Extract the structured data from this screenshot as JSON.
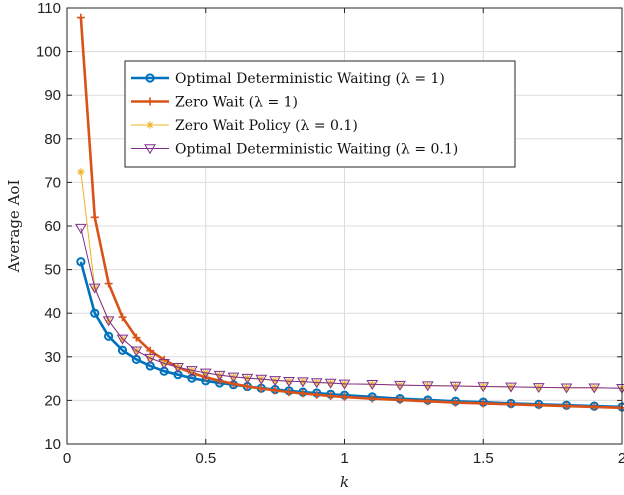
{
  "chart_data": {
    "type": "line",
    "title": "",
    "xlabel": "k",
    "ylabel": "Average AoI",
    "xlim": [
      0,
      2
    ],
    "ylim": [
      10,
      110
    ],
    "xticks": [
      "0",
      "0.5",
      "1",
      "1.5",
      "2"
    ],
    "yticks": [
      "10",
      "20",
      "30",
      "40",
      "50",
      "60",
      "70",
      "80",
      "90",
      "100",
      "110"
    ],
    "grid": true,
    "legend_position": "top-center",
    "series": [
      {
        "name": "Optimal Deterministic Waiting (λ = 1)",
        "color": "#0072BD",
        "marker": "circle",
        "x": [
          0.05,
          0.1,
          0.15,
          0.2,
          0.25,
          0.3,
          0.35,
          0.4,
          0.45,
          0.5,
          0.55,
          0.6,
          0.65,
          0.7,
          0.75,
          0.8,
          0.85,
          0.9,
          0.95,
          1.0,
          1.1,
          1.2,
          1.3,
          1.4,
          1.5,
          1.6,
          1.7,
          1.8,
          1.9,
          2.0
        ],
        "y": [
          51.8,
          40.0,
          34.7,
          31.5,
          29.4,
          27.9,
          26.7,
          25.9,
          25.1,
          24.5,
          24.0,
          23.6,
          23.2,
          22.8,
          22.5,
          22.2,
          21.9,
          21.7,
          21.4,
          21.2,
          20.8,
          20.4,
          20.1,
          19.8,
          19.6,
          19.3,
          19.1,
          18.9,
          18.7,
          18.5
        ]
      },
      {
        "name": "Zero Wait (λ = 1)",
        "color": "#D95319",
        "marker": "plus",
        "x": [
          0.05,
          0.1,
          0.15,
          0.2,
          0.25,
          0.3,
          0.35,
          0.4,
          0.45,
          0.5,
          0.55,
          0.6,
          0.65,
          0.7,
          0.75,
          0.8,
          0.85,
          0.9,
          0.95,
          1.0,
          1.1,
          1.2,
          1.3,
          1.4,
          1.5,
          1.6,
          1.7,
          1.8,
          1.9,
          2.0
        ],
        "y": [
          107.8,
          62.0,
          46.8,
          39.1,
          34.4,
          31.4,
          29.3,
          27.6,
          26.3,
          25.3,
          24.5,
          23.8,
          23.2,
          22.7,
          22.3,
          21.9,
          21.6,
          21.3,
          21.0,
          20.8,
          20.4,
          20.1,
          19.8,
          19.5,
          19.3,
          19.1,
          18.9,
          18.7,
          18.5,
          18.3
        ]
      },
      {
        "name": "Zero Wait Policy (λ = 0.1)",
        "color": "#EDB120",
        "marker": "star",
        "x": [
          0.05,
          0.1,
          0.15,
          0.2,
          0.25,
          0.3,
          0.35,
          0.4,
          0.45,
          0.5,
          0.55,
          0.6,
          0.65,
          0.7,
          0.75,
          0.8,
          0.85,
          0.9,
          0.95,
          1.0,
          1.1,
          1.2,
          1.3,
          1.4,
          1.5,
          1.6,
          1.7,
          1.8,
          1.9,
          2.0
        ],
        "y": [
          72.4,
          45.8,
          38.3,
          34.1,
          31.4,
          29.7,
          28.5,
          27.6,
          26.9,
          26.3,
          25.8,
          25.4,
          25.1,
          24.9,
          24.6,
          24.4,
          24.3,
          24.1,
          24.0,
          23.8,
          23.7,
          23.5,
          23.4,
          23.3,
          23.2,
          23.1,
          23.0,
          22.9,
          22.9,
          22.8
        ]
      },
      {
        "name": "Optimal Deterministic Waiting (λ = 0.1)",
        "color": "#7E2F8E",
        "marker": "triangle-down",
        "x": [
          0.05,
          0.1,
          0.15,
          0.2,
          0.25,
          0.3,
          0.35,
          0.4,
          0.45,
          0.5,
          0.55,
          0.6,
          0.65,
          0.7,
          0.75,
          0.8,
          0.85,
          0.9,
          0.95,
          1.0,
          1.1,
          1.2,
          1.3,
          1.4,
          1.5,
          1.6,
          1.7,
          1.8,
          1.9,
          2.0
        ],
        "y": [
          59.5,
          45.8,
          38.3,
          34.1,
          31.4,
          29.7,
          28.5,
          27.6,
          26.9,
          26.3,
          25.8,
          25.4,
          25.1,
          24.9,
          24.6,
          24.4,
          24.3,
          24.1,
          24.0,
          23.8,
          23.7,
          23.5,
          23.4,
          23.3,
          23.2,
          23.1,
          23.0,
          22.9,
          22.9,
          22.8
        ]
      }
    ]
  }
}
